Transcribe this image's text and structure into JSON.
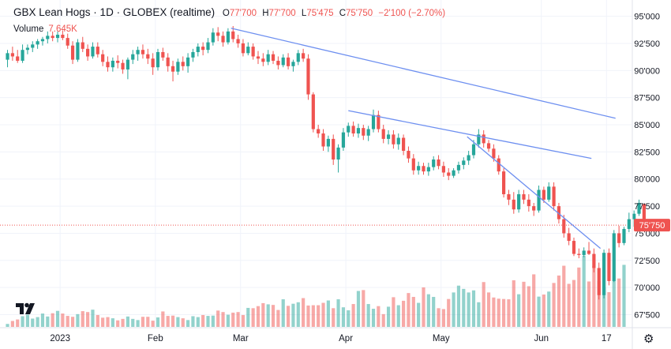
{
  "header": {
    "title": "GBX Lean Hogs · 1D · GLOBEX (realtime)",
    "open_label": "O",
    "open": "77'700",
    "high_label": "H",
    "high": "77'700",
    "low_label": "L",
    "low": "75'475",
    "close_label": "C",
    "close": "75'750",
    "change": "−2'100 (−2.70%)"
  },
  "volume": {
    "label": "Volume",
    "value": "7.645K"
  },
  "price_tag": "75'750",
  "colors": {
    "up": "#26a69a",
    "down": "#ef5350",
    "trend": "#6d8ff0",
    "last_line": "#ef5350"
  },
  "icons": {
    "logo": "tradingview-logo-icon",
    "settings": "gear-icon"
  },
  "chart_data": {
    "type": "candlestick",
    "y_ticks": [
      "95'000",
      "92'500",
      "90'000",
      "87'500",
      "85'000",
      "82'500",
      "80'000",
      "77'500",
      "75'000",
      "72'500",
      "70'000",
      "67'500"
    ],
    "y_tick_values": [
      95,
      92.5,
      90,
      87.5,
      85,
      82.5,
      80,
      77.5,
      75,
      72.5,
      70,
      67.5
    ],
    "ylim": [
      66.3,
      96.5
    ],
    "x_ticks": [
      "2023",
      "Feb",
      "Mar",
      "Apr",
      "May",
      "Jun",
      "17"
    ],
    "x_tick_index": [
      10.5,
      29.5,
      46.5,
      67.5,
      86.5,
      106.5,
      119.5
    ],
    "xlim": [
      -1.5,
      124.5
    ],
    "last_price": 75.75,
    "candles": [
      {
        "o": 91.0,
        "h": 91.9,
        "l": 90.3,
        "c": 91.6
      },
      {
        "o": 91.6,
        "h": 92.2,
        "l": 90.9,
        "c": 91.3
      },
      {
        "o": 91.3,
        "h": 91.9,
        "l": 90.7,
        "c": 90.9
      },
      {
        "o": 90.9,
        "h": 92.4,
        "l": 90.7,
        "c": 91.9
      },
      {
        "o": 91.9,
        "h": 92.4,
        "l": 91.5,
        "c": 92.1
      },
      {
        "o": 92.1,
        "h": 92.7,
        "l": 91.7,
        "c": 92.4
      },
      {
        "o": 92.4,
        "h": 92.9,
        "l": 92.0,
        "c": 92.7
      },
      {
        "o": 92.7,
        "h": 93.1,
        "l": 92.3,
        "c": 92.9
      },
      {
        "o": 92.9,
        "h": 93.6,
        "l": 92.5,
        "c": 93.2
      },
      {
        "o": 93.2,
        "h": 93.6,
        "l": 92.7,
        "c": 93.0
      },
      {
        "o": 93.0,
        "h": 93.6,
        "l": 92.6,
        "c": 93.3
      },
      {
        "o": 93.3,
        "h": 93.7,
        "l": 92.8,
        "c": 93.0
      },
      {
        "o": 93.0,
        "h": 93.4,
        "l": 92.0,
        "c": 92.3
      },
      {
        "o": 92.3,
        "h": 92.7,
        "l": 90.6,
        "c": 91.0
      },
      {
        "o": 91.0,
        "h": 92.9,
        "l": 90.8,
        "c": 92.6
      },
      {
        "o": 92.6,
        "h": 93.1,
        "l": 91.7,
        "c": 92.0
      },
      {
        "o": 92.0,
        "h": 92.4,
        "l": 90.9,
        "c": 91.3
      },
      {
        "o": 91.3,
        "h": 92.6,
        "l": 91.1,
        "c": 92.2
      },
      {
        "o": 92.2,
        "h": 92.6,
        "l": 91.2,
        "c": 91.5
      },
      {
        "o": 91.5,
        "h": 91.9,
        "l": 90.4,
        "c": 90.8
      },
      {
        "o": 90.8,
        "h": 91.3,
        "l": 89.9,
        "c": 90.3
      },
      {
        "o": 90.3,
        "h": 91.2,
        "l": 89.9,
        "c": 90.9
      },
      {
        "o": 90.9,
        "h": 91.4,
        "l": 90.2,
        "c": 90.7
      },
      {
        "o": 90.7,
        "h": 91.0,
        "l": 89.7,
        "c": 90.1
      },
      {
        "o": 90.1,
        "h": 91.2,
        "l": 89.2,
        "c": 91.0
      },
      {
        "o": 91.0,
        "h": 91.9,
        "l": 90.6,
        "c": 91.5
      },
      {
        "o": 91.5,
        "h": 92.2,
        "l": 90.9,
        "c": 91.9
      },
      {
        "o": 91.9,
        "h": 92.4,
        "l": 91.1,
        "c": 91.5
      },
      {
        "o": 91.5,
        "h": 92.0,
        "l": 90.6,
        "c": 91.1
      },
      {
        "o": 91.1,
        "h": 91.6,
        "l": 89.6,
        "c": 90.3
      },
      {
        "o": 90.3,
        "h": 92.0,
        "l": 90.0,
        "c": 91.7
      },
      {
        "o": 91.7,
        "h": 92.1,
        "l": 90.9,
        "c": 91.2
      },
      {
        "o": 91.2,
        "h": 91.6,
        "l": 89.9,
        "c": 90.4
      },
      {
        "o": 90.4,
        "h": 90.9,
        "l": 89.0,
        "c": 89.9
      },
      {
        "o": 89.9,
        "h": 91.1,
        "l": 89.6,
        "c": 90.8
      },
      {
        "o": 90.8,
        "h": 91.3,
        "l": 90.0,
        "c": 90.4
      },
      {
        "o": 90.4,
        "h": 91.6,
        "l": 89.8,
        "c": 91.2
      },
      {
        "o": 91.2,
        "h": 92.0,
        "l": 90.8,
        "c": 91.7
      },
      {
        "o": 91.7,
        "h": 92.5,
        "l": 91.3,
        "c": 92.2
      },
      {
        "o": 92.2,
        "h": 92.6,
        "l": 91.4,
        "c": 91.9
      },
      {
        "o": 91.9,
        "h": 93.0,
        "l": 91.6,
        "c": 92.6
      },
      {
        "o": 92.6,
        "h": 93.9,
        "l": 92.3,
        "c": 93.5
      },
      {
        "o": 93.5,
        "h": 94.0,
        "l": 92.7,
        "c": 93.2
      },
      {
        "o": 93.2,
        "h": 93.6,
        "l": 92.2,
        "c": 92.6
      },
      {
        "o": 92.6,
        "h": 93.9,
        "l": 92.4,
        "c": 93.6
      },
      {
        "o": 93.6,
        "h": 94.1,
        "l": 92.6,
        "c": 92.9
      },
      {
        "o": 92.9,
        "h": 93.3,
        "l": 92.1,
        "c": 92.5
      },
      {
        "o": 92.5,
        "h": 92.9,
        "l": 91.3,
        "c": 91.6
      },
      {
        "o": 91.6,
        "h": 92.6,
        "l": 91.4,
        "c": 92.2
      },
      {
        "o": 92.2,
        "h": 92.5,
        "l": 91.0,
        "c": 91.3
      },
      {
        "o": 91.3,
        "h": 91.8,
        "l": 90.6,
        "c": 91.1
      },
      {
        "o": 91.1,
        "h": 91.6,
        "l": 90.4,
        "c": 90.8
      },
      {
        "o": 90.8,
        "h": 91.9,
        "l": 90.5,
        "c": 91.5
      },
      {
        "o": 91.5,
        "h": 91.8,
        "l": 90.6,
        "c": 90.9
      },
      {
        "o": 90.9,
        "h": 91.3,
        "l": 90.1,
        "c": 90.5
      },
      {
        "o": 90.5,
        "h": 91.5,
        "l": 90.3,
        "c": 91.2
      },
      {
        "o": 91.2,
        "h": 91.6,
        "l": 90.1,
        "c": 90.4
      },
      {
        "o": 90.4,
        "h": 91.0,
        "l": 89.9,
        "c": 90.8
      },
      {
        "o": 90.8,
        "h": 91.9,
        "l": 90.5,
        "c": 91.6
      },
      {
        "o": 91.6,
        "h": 92.0,
        "l": 90.8,
        "c": 91.1
      },
      {
        "o": 91.1,
        "h": 91.5,
        "l": 87.3,
        "c": 87.8
      },
      {
        "o": 87.8,
        "h": 88.0,
        "l": 84.3,
        "c": 84.6
      },
      {
        "o": 84.6,
        "h": 85.0,
        "l": 83.8,
        "c": 84.2
      },
      {
        "o": 84.2,
        "h": 84.6,
        "l": 82.6,
        "c": 83.0
      },
      {
        "o": 83.0,
        "h": 84.0,
        "l": 82.5,
        "c": 83.7
      },
      {
        "o": 83.7,
        "h": 84.1,
        "l": 81.3,
        "c": 81.8
      },
      {
        "o": 81.8,
        "h": 83.2,
        "l": 80.6,
        "c": 82.9
      },
      {
        "o": 82.9,
        "h": 84.7,
        "l": 82.6,
        "c": 84.3
      },
      {
        "o": 84.3,
        "h": 85.2,
        "l": 83.9,
        "c": 84.9
      },
      {
        "o": 84.9,
        "h": 85.3,
        "l": 83.9,
        "c": 84.2
      },
      {
        "o": 84.2,
        "h": 85.1,
        "l": 83.8,
        "c": 84.7
      },
      {
        "o": 84.7,
        "h": 85.0,
        "l": 83.6,
        "c": 84.0
      },
      {
        "o": 84.0,
        "h": 84.9,
        "l": 83.5,
        "c": 84.6
      },
      {
        "o": 84.6,
        "h": 86.4,
        "l": 84.3,
        "c": 85.9
      },
      {
        "o": 85.9,
        "h": 86.3,
        "l": 84.3,
        "c": 84.6
      },
      {
        "o": 84.6,
        "h": 85.0,
        "l": 83.3,
        "c": 83.7
      },
      {
        "o": 83.7,
        "h": 84.5,
        "l": 83.2,
        "c": 84.1
      },
      {
        "o": 84.1,
        "h": 84.5,
        "l": 82.8,
        "c": 83.2
      },
      {
        "o": 83.2,
        "h": 84.2,
        "l": 82.7,
        "c": 83.8
      },
      {
        "o": 83.8,
        "h": 84.1,
        "l": 82.2,
        "c": 82.6
      },
      {
        "o": 82.6,
        "h": 83.0,
        "l": 81.5,
        "c": 81.9
      },
      {
        "o": 81.9,
        "h": 82.3,
        "l": 80.4,
        "c": 80.8
      },
      {
        "o": 80.8,
        "h": 81.6,
        "l": 80.4,
        "c": 81.2
      },
      {
        "o": 81.2,
        "h": 81.5,
        "l": 80.4,
        "c": 80.7
      },
      {
        "o": 80.7,
        "h": 81.5,
        "l": 80.3,
        "c": 81.1
      },
      {
        "o": 81.1,
        "h": 82.1,
        "l": 80.8,
        "c": 81.8
      },
      {
        "o": 81.8,
        "h": 82.2,
        "l": 80.9,
        "c": 81.2
      },
      {
        "o": 81.2,
        "h": 81.6,
        "l": 80.2,
        "c": 80.6
      },
      {
        "o": 80.6,
        "h": 81.0,
        "l": 79.9,
        "c": 80.3
      },
      {
        "o": 80.3,
        "h": 81.0,
        "l": 80.1,
        "c": 80.8
      },
      {
        "o": 80.8,
        "h": 81.6,
        "l": 80.5,
        "c": 81.3
      },
      {
        "o": 81.3,
        "h": 82.0,
        "l": 80.9,
        "c": 81.7
      },
      {
        "o": 81.7,
        "h": 82.6,
        "l": 81.3,
        "c": 82.2
      },
      {
        "o": 82.2,
        "h": 83.6,
        "l": 81.9,
        "c": 83.2
      },
      {
        "o": 83.2,
        "h": 84.6,
        "l": 82.9,
        "c": 84.1
      },
      {
        "o": 84.1,
        "h": 84.5,
        "l": 82.9,
        "c": 83.3
      },
      {
        "o": 83.3,
        "h": 83.6,
        "l": 82.5,
        "c": 82.8
      },
      {
        "o": 82.8,
        "h": 83.2,
        "l": 81.6,
        "c": 81.9
      },
      {
        "o": 81.9,
        "h": 82.2,
        "l": 80.4,
        "c": 80.7
      },
      {
        "o": 80.7,
        "h": 81.0,
        "l": 78.3,
        "c": 78.6
      },
      {
        "o": 78.6,
        "h": 79.0,
        "l": 77.6,
        "c": 78.1
      },
      {
        "o": 78.1,
        "h": 78.8,
        "l": 76.8,
        "c": 77.2
      },
      {
        "o": 77.2,
        "h": 79.0,
        "l": 76.9,
        "c": 78.6
      },
      {
        "o": 78.6,
        "h": 79.0,
        "l": 77.7,
        "c": 78.1
      },
      {
        "o": 78.1,
        "h": 78.6,
        "l": 77.0,
        "c": 77.5
      },
      {
        "o": 77.5,
        "h": 77.8,
        "l": 76.6,
        "c": 77.1
      },
      {
        "o": 77.1,
        "h": 79.4,
        "l": 76.9,
        "c": 79.0
      },
      {
        "o": 79.0,
        "h": 79.3,
        "l": 77.8,
        "c": 78.1
      },
      {
        "o": 78.1,
        "h": 79.7,
        "l": 77.9,
        "c": 79.3
      },
      {
        "o": 79.3,
        "h": 79.7,
        "l": 77.1,
        "c": 77.5
      },
      {
        "o": 77.5,
        "h": 77.8,
        "l": 75.9,
        "c": 76.3
      },
      {
        "o": 76.3,
        "h": 76.7,
        "l": 74.6,
        "c": 75.0
      },
      {
        "o": 75.0,
        "h": 75.5,
        "l": 73.9,
        "c": 74.3
      },
      {
        "o": 74.3,
        "h": 74.6,
        "l": 72.9,
        "c": 73.1
      },
      {
        "o": 73.1,
        "h": 73.6,
        "l": 72.7,
        "c": 73.0
      },
      {
        "o": 73.0,
        "h": 73.7,
        "l": 72.8,
        "c": 73.4
      },
      {
        "o": 73.4,
        "h": 74.2,
        "l": 73.0,
        "c": 73.1
      },
      {
        "o": 73.1,
        "h": 73.6,
        "l": 71.4,
        "c": 71.8
      },
      {
        "o": 71.8,
        "h": 72.3,
        "l": 68.9,
        "c": 69.3
      },
      {
        "o": 69.3,
        "h": 73.5,
        "l": 69.0,
        "c": 73.2
      },
      {
        "o": 73.2,
        "h": 73.6,
        "l": 70.2,
        "c": 70.6
      },
      {
        "o": 70.6,
        "h": 75.3,
        "l": 70.5,
        "c": 75.0
      },
      {
        "o": 75.0,
        "h": 75.7,
        "l": 73.7,
        "c": 74.1
      },
      {
        "o": 74.1,
        "h": 75.6,
        "l": 73.9,
        "c": 75.4
      },
      {
        "o": 75.4,
        "h": 76.9,
        "l": 75.1,
        "c": 76.3
      },
      {
        "o": 76.3,
        "h": 77.1,
        "l": 75.6,
        "c": 76.8
      },
      {
        "o": 76.8,
        "h": 78.1,
        "l": 76.6,
        "c": 77.8
      },
      {
        "o": 77.7,
        "h": 77.7,
        "l": 75.475,
        "c": 75.75
      }
    ],
    "volume": [
      1.0,
      2.0,
      2.5,
      3.6,
      4.1,
      2.8,
      3.3,
      4.5,
      3.5,
      4.6,
      5.4,
      4.5,
      3.7,
      3.4,
      4.3,
      5.3,
      5.0,
      5.8,
      4.0,
      3.1,
      3.3,
      2.9,
      2.2,
      2.7,
      3.5,
      2.7,
      2.3,
      3.4,
      3.4,
      2.1,
      3.2,
      5.2,
      3.7,
      3.8,
      3.3,
      2.9,
      2.3,
      3.6,
      3.3,
      4.0,
      3.7,
      3.8,
      5.5,
      5.0,
      4.1,
      4.8,
      5.0,
      4.0,
      6.4,
      6.3,
      7.0,
      8.0,
      7.6,
      7.4,
      5.7,
      9.3,
      7.1,
      7.8,
      8.3,
      9.7,
      7.2,
      7.3,
      7.3,
      8.1,
      8.9,
      6.3,
      9.3,
      6.6,
      5.6,
      7.7,
      12.1,
      12.4,
      7.7,
      6.1,
      7.0,
      4.3,
      6.8,
      10.0,
      7.3,
      8.8,
      11.4,
      10.1,
      8.1,
      13.3,
      11.0,
      10.1,
      6.3,
      6.0,
      9.4,
      11.6,
      13.9,
      12.8,
      11.6,
      12.3,
      8.3,
      15.1,
      11.6,
      9.9,
      9.5,
      9.4,
      9.3,
      15.7,
      11.0,
      15.2,
      13.7,
      17.7,
      10.2,
      10.9,
      11.9,
      14.8,
      17.3,
      20.6,
      14.5,
      15.8,
      20.0,
      24.0,
      15.3,
      20.5,
      15.5,
      13.4,
      11.7,
      15.6,
      16.3,
      20.9
    ],
    "vol_max": 25.0,
    "trendlines": [
      {
        "from": [
          44.6,
          93.9
        ],
        "to": [
          121.3,
          85.6
        ]
      },
      {
        "from": [
          68.0,
          86.3
        ],
        "to": [
          116.5,
          81.9
        ]
      },
      {
        "from": [
          91.7,
          83.9
        ],
        "to": [
          118.3,
          73.6
        ]
      }
    ]
  }
}
